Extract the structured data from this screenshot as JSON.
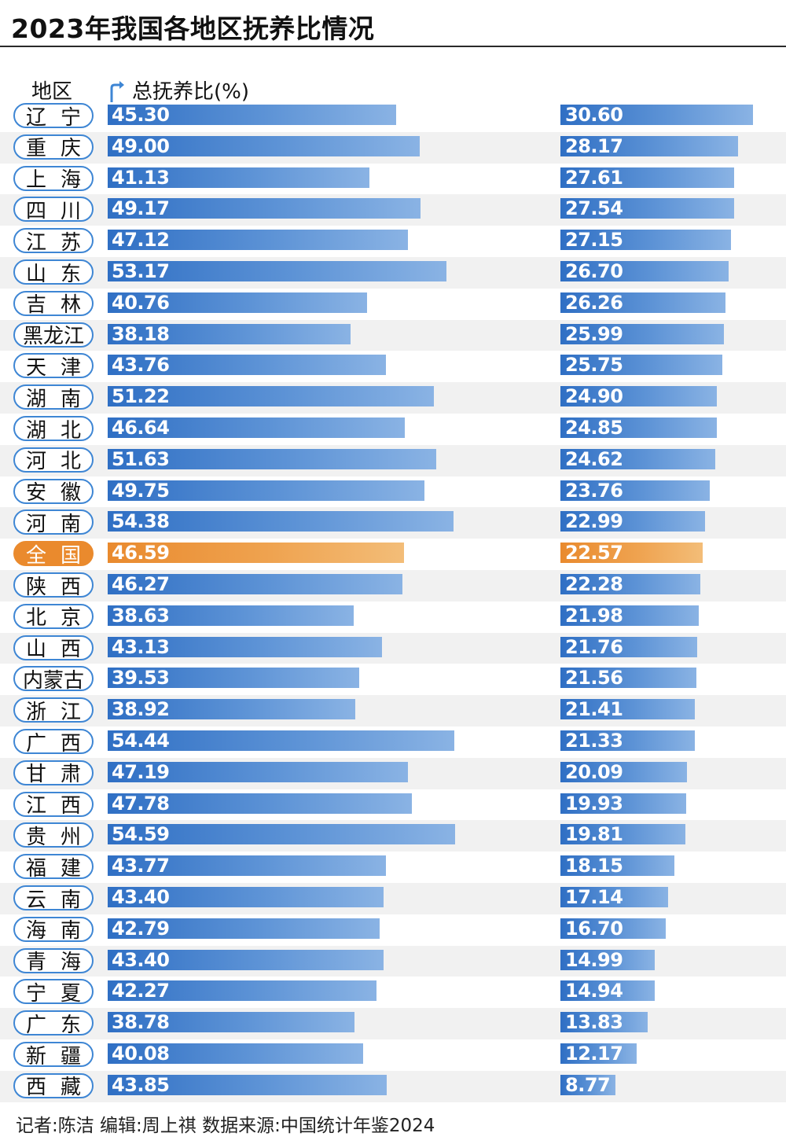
{
  "title": "2023年我国各地区抚养比情况",
  "header": {
    "region_label": "地区",
    "total_label": "总抚养比(%)"
  },
  "footer": "记者:陈洁   编辑:周上祺   数据来源:中国统计年鉴2024",
  "colors": {
    "bar_blue": "#3f7fcb",
    "highlight_orange": "#ea8a2d",
    "pill_border": "#3e86d4"
  },
  "chart_data": {
    "type": "bar",
    "orientation": "horizontal",
    "highlight": "全国",
    "categories": [
      "辽宁",
      "重庆",
      "上海",
      "四川",
      "江苏",
      "山东",
      "吉林",
      "黑龙江",
      "天津",
      "湖南",
      "湖北",
      "河北",
      "安徽",
      "河南",
      "全国",
      "陕西",
      "北京",
      "山西",
      "内蒙古",
      "浙江",
      "广西",
      "甘肃",
      "江西",
      "贵州",
      "福建",
      "云南",
      "海南",
      "青海",
      "宁夏",
      "广东",
      "新疆",
      "西藏"
    ],
    "series": [
      {
        "name": "总抚养比(%)",
        "values": [
          45.3,
          49.0,
          41.13,
          49.17,
          47.12,
          53.17,
          40.76,
          38.18,
          43.76,
          51.22,
          46.64,
          51.63,
          49.75,
          54.38,
          46.59,
          46.27,
          38.63,
          43.13,
          39.53,
          38.92,
          54.44,
          47.19,
          47.78,
          54.59,
          43.77,
          43.4,
          42.79,
          43.4,
          42.27,
          38.78,
          40.08,
          43.85
        ]
      },
      {
        "values": [
          30.6,
          28.17,
          27.61,
          27.54,
          27.15,
          26.7,
          26.26,
          25.99,
          25.75,
          24.9,
          24.85,
          24.62,
          23.76,
          22.99,
          22.57,
          22.28,
          21.98,
          21.76,
          21.56,
          21.41,
          21.33,
          20.09,
          19.93,
          19.81,
          18.15,
          17.14,
          16.7,
          14.99,
          14.94,
          13.83,
          12.17,
          8.77
        ]
      }
    ]
  }
}
